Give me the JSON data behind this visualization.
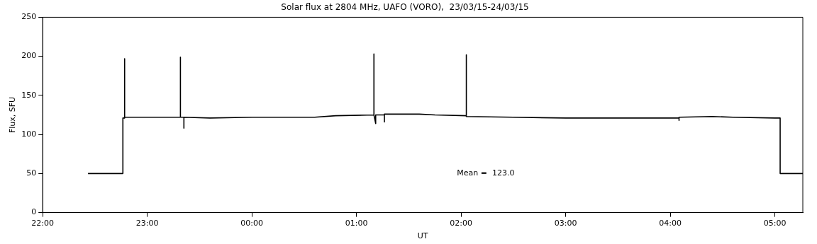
{
  "chart_data": {
    "type": "line",
    "title": "Solar flux at 2804 MHz, UAFO (VORO),  23/03/15-24/03/15",
    "xlabel": "UT",
    "ylabel": "Flux, SFU",
    "annotations": [
      "Mean =  123.0"
    ],
    "series": [
      {
        "color": "#000000",
        "x": [
          "--03-23T22:26",
          "--03-23T22:46",
          "--03-23T22:46",
          "--03-23T22:47",
          "--03-23T22:47",
          "--03-23T22:47",
          "--03-23T23:00",
          "--03-23T23:19",
          "--03-23T23:19",
          "--03-23T23:19",
          "--03-23T23:21",
          "--03-23T23:21",
          "--03-23T23:21",
          "--03-23T23:36",
          "--03-24T00:00",
          "--03-24T00:18",
          "--03-24T00:36",
          "--03-24T00:48",
          "--03-24T01:10",
          "--03-24T01:10",
          "--03-24T01:10",
          "--03-24T01:11",
          "--03-24T01:11",
          "--03-24T01:16",
          "--03-24T01:16",
          "--03-24T01:16",
          "--03-24T01:36",
          "--03-24T01:45",
          "--03-24T02:03",
          "--03-24T02:03",
          "--03-24T02:03",
          "--03-24T02:30",
          "--03-24T03:00",
          "--03-24T03:30",
          "--03-24T04:00",
          "--03-24T04:05",
          "--03-24T04:05",
          "--03-24T04:05",
          "--03-24T04:24",
          "--03-24T04:36",
          "--03-24T05:00",
          "--03-24T05:03",
          "--03-24T05:03",
          "--03-24T05:16"
        ],
        "values": [
          50,
          50,
          121,
          121,
          197,
          122,
          122,
          122,
          199,
          122,
          122,
          108,
          122,
          121,
          122,
          122,
          122,
          124,
          125,
          203,
          125,
          114,
          125,
          125,
          116,
          126,
          126,
          125,
          124,
          202,
          123,
          122,
          121,
          121,
          121,
          121,
          118,
          122,
          123,
          122,
          121,
          121,
          50,
          50
        ]
      }
    ],
    "xlim": [
      "--03-23T22:00",
      "--03-24T05:16"
    ],
    "xticks": [
      {
        "value": "--03-23T22:00",
        "label": "22:00"
      },
      {
        "value": "--03-23T23:00",
        "label": "23:00"
      },
      {
        "value": "--03-24T00:00",
        "label": "00:00"
      },
      {
        "value": "--03-24T01:00",
        "label": "01:00"
      },
      {
        "value": "--03-24T02:00",
        "label": "02:00"
      },
      {
        "value": "--03-24T03:00",
        "label": "03:00"
      },
      {
        "value": "--03-24T04:00",
        "label": "04:00"
      },
      {
        "value": "--03-24T05:00",
        "label": "05:00"
      }
    ],
    "ylim": [
      0,
      250
    ],
    "yticks": [
      0,
      50,
      100,
      150,
      200,
      250
    ],
    "grid": false,
    "marker": "none",
    "line_style": "solid",
    "legend": false
  }
}
